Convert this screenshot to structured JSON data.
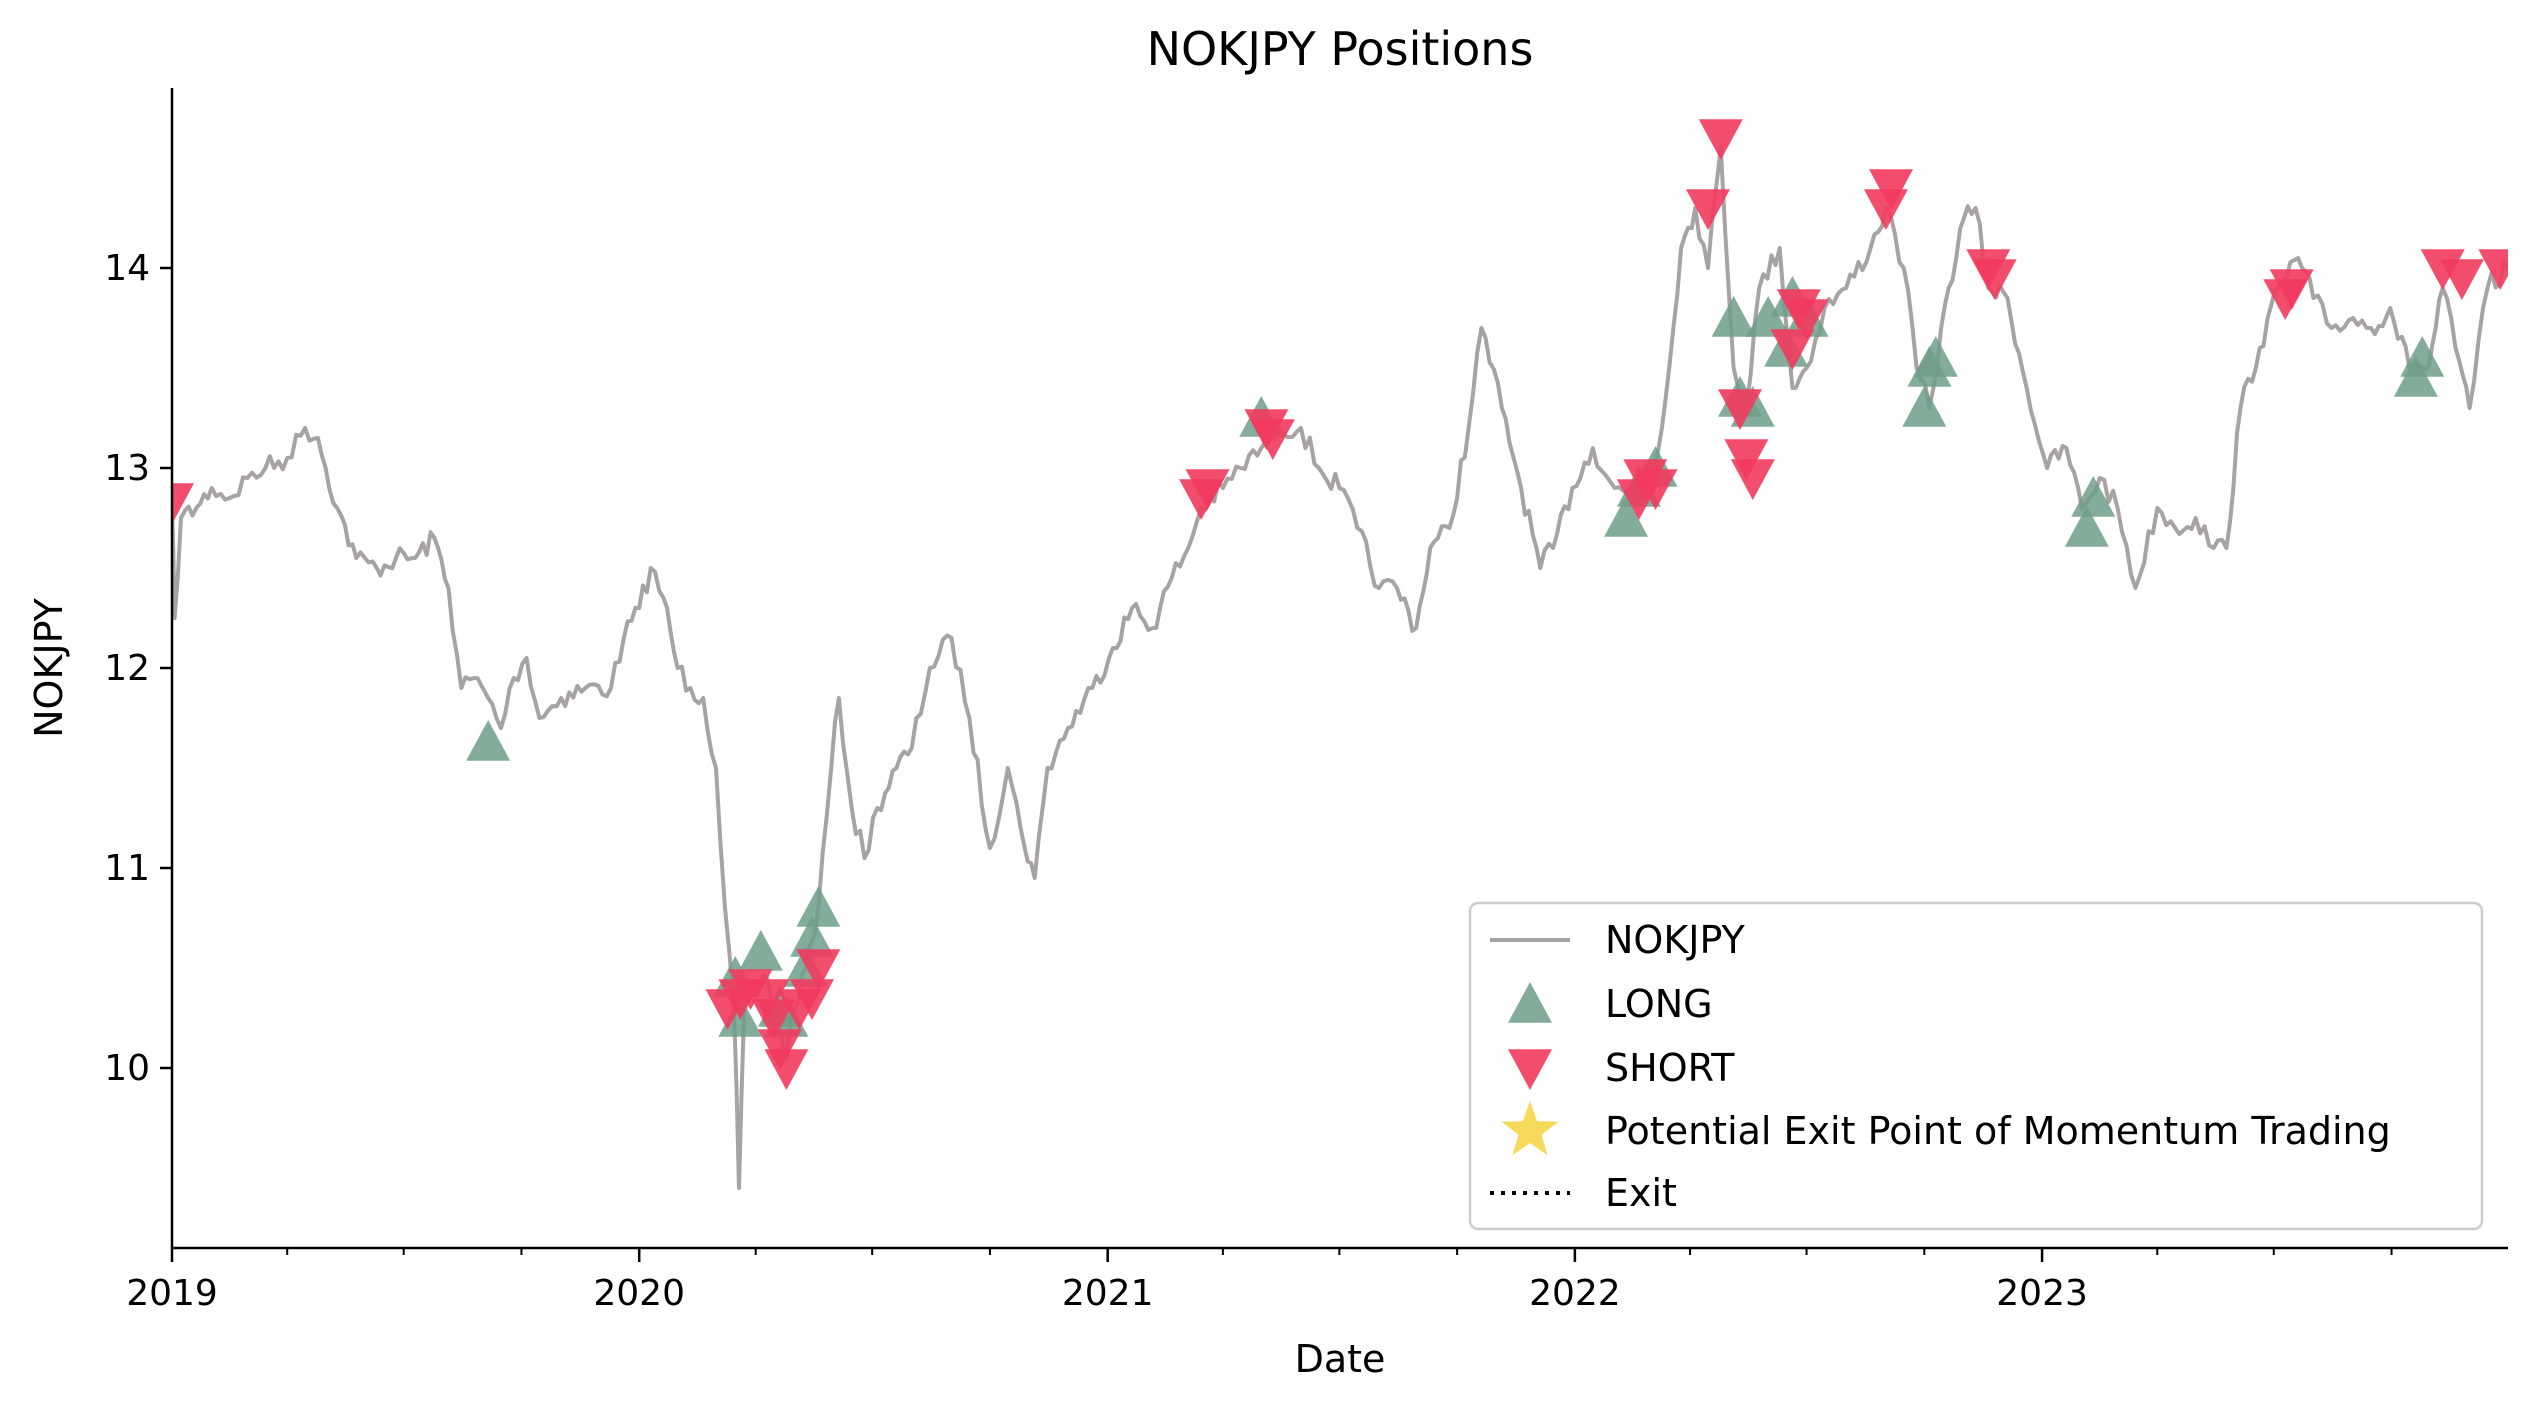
{
  "chart_data": {
    "type": "line",
    "title": "NOKJPY Positions",
    "xlabel": "Date",
    "ylabel": "NOKJPY",
    "xlim": [
      "2019-01-01",
      "2023-12-31"
    ],
    "ylim": [
      9.1,
      14.9
    ],
    "grid": false,
    "legend_position": "lower-right",
    "x_ticks": [
      "2019",
      "2020",
      "2021",
      "2022",
      "2023"
    ],
    "y_ticks": [
      "10",
      "11",
      "12",
      "13",
      "14"
    ],
    "colors": {
      "line": "#a8a3a3",
      "long": "#6e9e88",
      "short": "#f23a5e",
      "star": "#f5d547",
      "exit": "#000000"
    },
    "legend": [
      {
        "label": "NOKJPY",
        "kind": "line"
      },
      {
        "label": "LONG",
        "kind": "long"
      },
      {
        "label": "SHORT",
        "kind": "short"
      },
      {
        "label": "Potential Exit Point of Momentum Trading",
        "kind": "star"
      },
      {
        "label": "Exit",
        "kind": "exit"
      }
    ],
    "series": [
      {
        "name": "NOKJPY",
        "points": [
          [
            "2019-01-01",
            12.8
          ],
          [
            "2019-01-03",
            12.25
          ],
          [
            "2019-01-08",
            12.75
          ],
          [
            "2019-01-20",
            12.8
          ],
          [
            "2019-02-01",
            12.9
          ],
          [
            "2019-02-15",
            12.85
          ],
          [
            "2019-03-01",
            12.95
          ],
          [
            "2019-03-15",
            13.0
          ],
          [
            "2019-04-01",
            13.05
          ],
          [
            "2019-04-15",
            13.2
          ],
          [
            "2019-04-25",
            13.15
          ],
          [
            "2019-05-10",
            12.8
          ],
          [
            "2019-05-25",
            12.55
          ],
          [
            "2019-06-10",
            12.5
          ],
          [
            "2019-06-25",
            12.55
          ],
          [
            "2019-07-10",
            12.55
          ],
          [
            "2019-07-25",
            12.65
          ],
          [
            "2019-08-05",
            12.4
          ],
          [
            "2019-08-15",
            11.9
          ],
          [
            "2019-08-25",
            11.95
          ],
          [
            "2019-09-05",
            11.85
          ],
          [
            "2019-09-15",
            11.7
          ],
          [
            "2019-09-25",
            11.95
          ],
          [
            "2019-10-05",
            12.05
          ],
          [
            "2019-10-15",
            11.75
          ],
          [
            "2019-11-01",
            11.85
          ],
          [
            "2019-11-20",
            11.9
          ],
          [
            "2019-12-10",
            11.9
          ],
          [
            "2019-12-20",
            12.15
          ],
          [
            "2020-01-01",
            12.3
          ],
          [
            "2020-01-10",
            12.5
          ],
          [
            "2020-01-20",
            12.35
          ],
          [
            "2020-01-31",
            12.0
          ],
          [
            "2020-02-10",
            11.9
          ],
          [
            "2020-02-20",
            11.85
          ],
          [
            "2020-03-01",
            11.5
          ],
          [
            "2020-03-08",
            10.8
          ],
          [
            "2020-03-15",
            10.3
          ],
          [
            "2020-03-19",
            9.4
          ],
          [
            "2020-03-23",
            10.3
          ],
          [
            "2020-04-01",
            10.4
          ],
          [
            "2020-04-10",
            10.45
          ],
          [
            "2020-04-20",
            10.2
          ],
          [
            "2020-04-25",
            10.05
          ],
          [
            "2020-05-01",
            10.3
          ],
          [
            "2020-05-10",
            10.5
          ],
          [
            "2020-05-20",
            10.8
          ],
          [
            "2020-05-30",
            11.5
          ],
          [
            "2020-06-05",
            11.85
          ],
          [
            "2020-06-15",
            11.3
          ],
          [
            "2020-06-25",
            11.05
          ],
          [
            "2020-07-05",
            11.3
          ],
          [
            "2020-07-20",
            11.5
          ],
          [
            "2020-08-01",
            11.6
          ],
          [
            "2020-08-15",
            12.0
          ],
          [
            "2020-09-01",
            12.15
          ],
          [
            "2020-09-15",
            11.75
          ],
          [
            "2020-10-01",
            11.1
          ],
          [
            "2020-10-15",
            11.5
          ],
          [
            "2020-10-25",
            11.2
          ],
          [
            "2020-11-05",
            10.95
          ],
          [
            "2020-11-15",
            11.5
          ],
          [
            "2020-12-01",
            11.7
          ],
          [
            "2020-12-20",
            11.9
          ],
          [
            "2021-01-05",
            12.1
          ],
          [
            "2021-01-20",
            12.3
          ],
          [
            "2021-02-05",
            12.2
          ],
          [
            "2021-02-20",
            12.45
          ],
          [
            "2021-03-05",
            12.6
          ],
          [
            "2021-03-15",
            12.8
          ],
          [
            "2021-04-01",
            12.9
          ],
          [
            "2021-04-15",
            13.0
          ],
          [
            "2021-05-01",
            13.1
          ],
          [
            "2021-05-15",
            13.2
          ],
          [
            "2021-06-01",
            13.2
          ],
          [
            "2021-06-15",
            13.0
          ],
          [
            "2021-07-01",
            12.9
          ],
          [
            "2021-07-15",
            12.7
          ],
          [
            "2021-08-01",
            12.4
          ],
          [
            "2021-08-15",
            12.4
          ],
          [
            "2021-08-30",
            12.2
          ],
          [
            "2021-09-10",
            12.6
          ],
          [
            "2021-09-25",
            12.7
          ],
          [
            "2021-10-10",
            13.2
          ],
          [
            "2021-10-20",
            13.7
          ],
          [
            "2021-11-05",
            13.3
          ],
          [
            "2021-11-20",
            12.9
          ],
          [
            "2021-12-05",
            12.5
          ],
          [
            "2021-12-15",
            12.6
          ],
          [
            "2021-12-30",
            12.9
          ],
          [
            "2022-01-15",
            13.1
          ],
          [
            "2022-02-01",
            12.9
          ],
          [
            "2022-02-15",
            12.85
          ],
          [
            "2022-03-01",
            12.9
          ],
          [
            "2022-03-10",
            13.2
          ],
          [
            "2022-03-25",
            14.1
          ],
          [
            "2022-04-05",
            14.3
          ],
          [
            "2022-04-15",
            14.0
          ],
          [
            "2022-04-25",
            14.6
          ],
          [
            "2022-05-05",
            13.5
          ],
          [
            "2022-05-15",
            13.3
          ],
          [
            "2022-05-25",
            13.9
          ],
          [
            "2022-06-10",
            14.1
          ],
          [
            "2022-06-20",
            13.4
          ],
          [
            "2022-07-01",
            13.5
          ],
          [
            "2022-07-15",
            13.8
          ],
          [
            "2022-08-01",
            13.9
          ],
          [
            "2022-08-20",
            14.1
          ],
          [
            "2022-09-01",
            14.3
          ],
          [
            "2022-09-15",
            14.0
          ],
          [
            "2022-09-25",
            13.5
          ],
          [
            "2022-10-05",
            13.3
          ],
          [
            "2022-10-20",
            13.9
          ],
          [
            "2022-11-01",
            14.25
          ],
          [
            "2022-11-10",
            14.3
          ],
          [
            "2022-11-20",
            13.9
          ],
          [
            "2022-12-05",
            13.85
          ],
          [
            "2022-12-20",
            13.4
          ],
          [
            "2023-01-05",
            13.0
          ],
          [
            "2023-01-20",
            13.1
          ],
          [
            "2023-02-01",
            12.8
          ],
          [
            "2023-02-15",
            12.95
          ],
          [
            "2023-03-01",
            12.8
          ],
          [
            "2023-03-15",
            12.4
          ],
          [
            "2023-04-01",
            12.8
          ],
          [
            "2023-04-15",
            12.7
          ],
          [
            "2023-05-01",
            12.75
          ],
          [
            "2023-05-15",
            12.6
          ],
          [
            "2023-05-25",
            12.6
          ],
          [
            "2023-06-05",
            13.3
          ],
          [
            "2023-06-20",
            13.6
          ],
          [
            "2023-07-05",
            13.9
          ],
          [
            "2023-07-20",
            14.05
          ],
          [
            "2023-08-01",
            13.85
          ],
          [
            "2023-08-15",
            13.7
          ],
          [
            "2023-09-01",
            13.75
          ],
          [
            "2023-09-15",
            13.7
          ],
          [
            "2023-09-30",
            13.8
          ],
          [
            "2023-10-15",
            13.5
          ],
          [
            "2023-10-30",
            13.5
          ],
          [
            "2023-11-10",
            13.9
          ],
          [
            "2023-11-20",
            13.6
          ],
          [
            "2023-12-01",
            13.3
          ],
          [
            "2023-12-15",
            13.9
          ],
          [
            "2023-12-31",
            14.0
          ]
        ]
      },
      {
        "name": "LONG",
        "points": [
          [
            "2019-09-05",
            11.63
          ],
          [
            "2020-03-16",
            10.45
          ],
          [
            "2020-03-20",
            10.25
          ],
          [
            "2020-04-05",
            10.58
          ],
          [
            "2020-04-20",
            10.3
          ],
          [
            "2020-04-25",
            10.25
          ],
          [
            "2020-05-10",
            10.5
          ],
          [
            "2020-05-15",
            10.65
          ],
          [
            "2020-05-20",
            10.8
          ],
          [
            "2021-05-01",
            13.25
          ],
          [
            "2022-02-10",
            12.75
          ],
          [
            "2022-02-20",
            12.9
          ],
          [
            "2022-03-05",
            13.0
          ],
          [
            "2022-05-05",
            13.75
          ],
          [
            "2022-05-10",
            13.35
          ],
          [
            "2022-05-20",
            13.3
          ],
          [
            "2022-06-01",
            13.75
          ],
          [
            "2022-06-15",
            13.6
          ],
          [
            "2022-06-20",
            13.85
          ],
          [
            "2022-07-01",
            13.75
          ],
          [
            "2022-10-01",
            13.3
          ],
          [
            "2022-10-05",
            13.5
          ],
          [
            "2022-10-10",
            13.55
          ],
          [
            "2023-02-05",
            12.7
          ],
          [
            "2023-02-10",
            12.85
          ],
          [
            "2023-10-20",
            13.45
          ],
          [
            "2023-10-25",
            13.55
          ]
        ]
      },
      {
        "name": "SHORT",
        "points": [
          [
            "2019-01-01",
            12.83
          ],
          [
            "2020-03-10",
            10.3
          ],
          [
            "2020-03-20",
            10.35
          ],
          [
            "2020-03-28",
            10.4
          ],
          [
            "2020-04-10",
            10.35
          ],
          [
            "2020-04-15",
            10.25
          ],
          [
            "2020-04-20",
            10.1
          ],
          [
            "2020-04-25",
            10.0
          ],
          [
            "2020-05-05",
            10.3
          ],
          [
            "2020-05-15",
            10.35
          ],
          [
            "2020-05-20",
            10.5
          ],
          [
            "2021-03-15",
            12.85
          ],
          [
            "2021-03-20",
            12.9
          ],
          [
            "2021-05-05",
            13.2
          ],
          [
            "2021-05-10",
            13.15
          ],
          [
            "2022-02-20",
            12.85
          ],
          [
            "2022-02-25",
            12.95
          ],
          [
            "2022-03-05",
            12.9
          ],
          [
            "2022-04-15",
            14.3
          ],
          [
            "2022-04-25",
            14.65
          ],
          [
            "2022-05-10",
            13.3
          ],
          [
            "2022-05-15",
            13.05
          ],
          [
            "2022-05-20",
            12.95
          ],
          [
            "2022-06-20",
            13.6
          ],
          [
            "2022-06-25",
            13.8
          ],
          [
            "2022-07-01",
            13.75
          ],
          [
            "2022-09-01",
            14.3
          ],
          [
            "2022-09-05",
            14.4
          ],
          [
            "2022-11-20",
            14.0
          ],
          [
            "2022-11-25",
            13.95
          ],
          [
            "2023-07-10",
            13.85
          ],
          [
            "2023-07-15",
            13.9
          ],
          [
            "2023-11-10",
            14.0
          ],
          [
            "2023-11-25",
            13.95
          ],
          [
            "2023-12-25",
            14.0
          ]
        ]
      }
    ]
  }
}
